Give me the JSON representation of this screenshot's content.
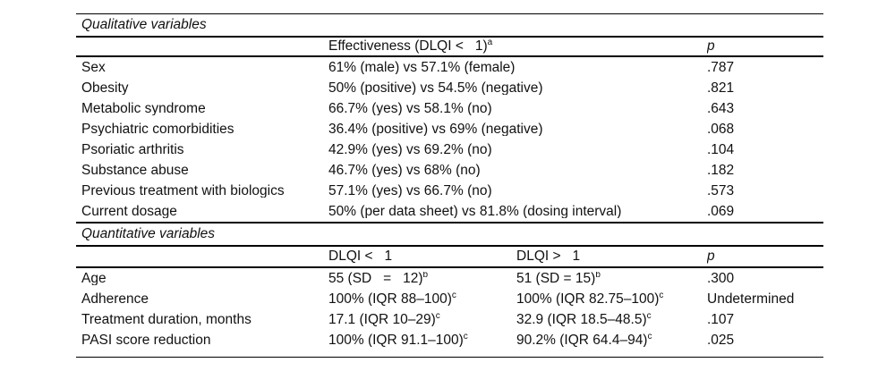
{
  "document": {
    "colors": {
      "background": "#ffffff",
      "text": "#111111",
      "rule": "#000000"
    },
    "sections": [
      {
        "title": "Qualitative variables",
        "header": {
          "effectiveness": "Effectiveness (DLQI <   1)",
          "effectiveness_sup": "a",
          "p": "p"
        },
        "rows": [
          {
            "label": "Sex",
            "value": "61% (male) vs 57.1% (female)",
            "p": ".787"
          },
          {
            "label": "Obesity",
            "value": "50% (positive) vs 54.5% (negative)",
            "p": ".821"
          },
          {
            "label": "Metabolic syndrome",
            "value": "66.7% (yes) vs 58.1% (no)",
            "p": ".643"
          },
          {
            "label": "Psychiatric comorbidities",
            "value": "36.4% (positive) vs 69% (negative)",
            "p": ".068"
          },
          {
            "label": "Psoriatic arthritis",
            "value": "42.9% (yes) vs 69.2% (no)",
            "p": ".104"
          },
          {
            "label": "Substance abuse",
            "value": "46.7% (yes) vs 68% (no)",
            "p": ".182"
          },
          {
            "label": "Previous treatment with biologics",
            "value": "57.1% (yes) vs 66.7% (no)",
            "p": ".573"
          },
          {
            "label": "Current dosage",
            "value": "50% (per data sheet) vs 81.8% (dosing interval)",
            "p": ".069"
          }
        ]
      },
      {
        "title": "Quantitative variables",
        "header": {
          "col_lt": "DLQI <   1",
          "col_gt": "DLQI >   1",
          "p": "p"
        },
        "rows": [
          {
            "label": "Age",
            "value1": "55 (SD   =   12)",
            "sup1": "b",
            "value2": "51 (SD = 15)",
            "sup2": "b",
            "p": ".300"
          },
          {
            "label": "Adherence",
            "value1": "100% (IQR 88–100)",
            "sup1": "c",
            "value2": "100% (IQR 82.75–100)",
            "sup2": "c",
            "p": "Undetermined"
          },
          {
            "label": "Treatment duration, months",
            "value1": "17.1 (IQR 10–29)",
            "sup1": "c",
            "value2": "32.9 (IQR 18.5–48.5)",
            "sup2": "c",
            "p": ".107"
          },
          {
            "label": "PASI score reduction",
            "value1": "100% (IQR 91.1–100)",
            "sup1": "c",
            "value2": "90.2% (IQR 64.4–94)",
            "sup2": "c",
            "p": ".025"
          }
        ]
      }
    ]
  }
}
